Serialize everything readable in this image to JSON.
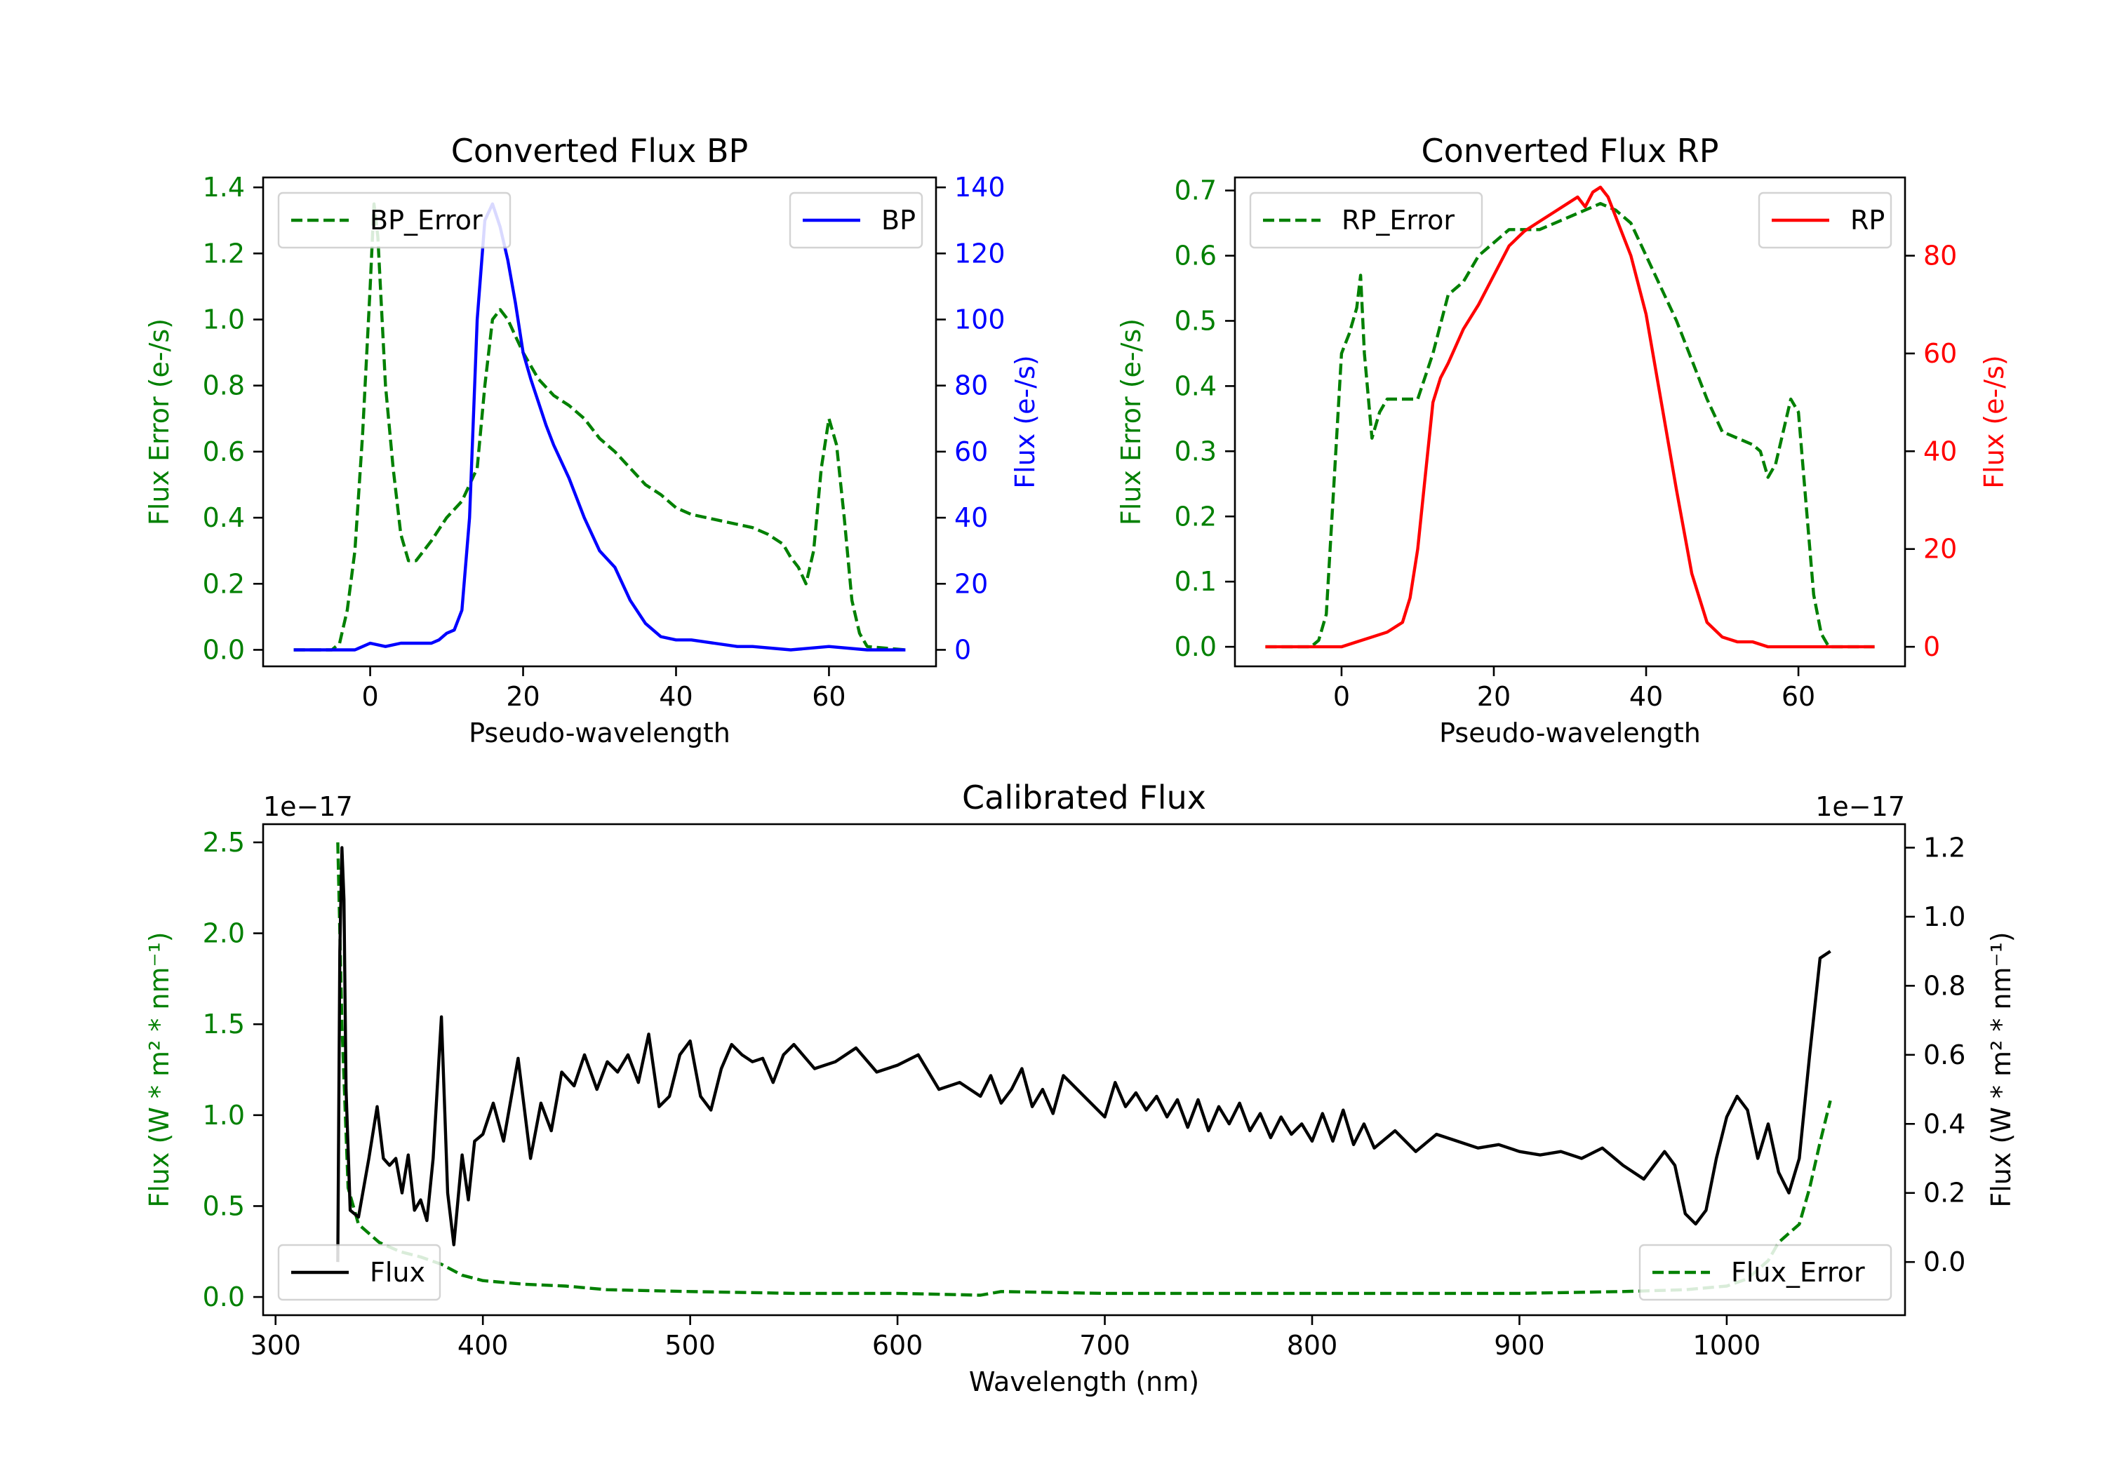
{
  "colors": {
    "green": "#008000",
    "blue": "#0000ff",
    "red": "#ff0000",
    "black": "#000000"
  },
  "chart_data": [
    {
      "id": "bp",
      "type": "line",
      "title": "Converted Flux BP",
      "xlabel": "Pseudo-wavelength",
      "ylabel_left": "Flux Error (e-/s)",
      "ylabel_right": "Flux (e-/s)",
      "xlim": [
        -14,
        74
      ],
      "ylim_left": [
        -0.05,
        1.43
      ],
      "ylim_right": [
        -5,
        143
      ],
      "xticks": [
        0,
        20,
        40,
        60
      ],
      "xtick_labels": [
        "0",
        "20",
        "40",
        "60"
      ],
      "yticks_left": [
        0.0,
        0.2,
        0.4,
        0.6,
        0.8,
        1.0,
        1.2,
        1.4
      ],
      "ytick_labels_left": [
        "0.0",
        "0.2",
        "0.4",
        "0.6",
        "0.8",
        "1.0",
        "1.2",
        "1.4"
      ],
      "yticks_right": [
        0,
        20,
        40,
        60,
        80,
        100,
        120,
        140
      ],
      "ytick_labels_right": [
        "0",
        "20",
        "40",
        "60",
        "80",
        "100",
        "120",
        "140"
      ],
      "right_axis_color": "#0000ff",
      "legend_left": {
        "label": "BP_Error",
        "position": "upper left"
      },
      "legend_right": {
        "label": "BP",
        "position": "upper right"
      },
      "series": [
        {
          "name": "BP_Error",
          "axis": "left",
          "color": "#008000",
          "style": "dashed",
          "x": [
            -10,
            -5,
            -4,
            -3,
            -2,
            -1,
            0,
            0.5,
            1,
            2,
            3,
            4,
            5,
            6,
            7,
            8,
            10,
            12,
            14,
            15,
            16,
            17,
            18,
            19,
            20,
            22,
            24,
            26,
            28,
            30,
            32,
            34,
            36,
            38,
            40,
            42,
            44,
            46,
            48,
            50,
            52,
            54,
            55,
            56,
            57,
            58,
            59,
            60,
            61,
            62,
            63,
            64,
            65,
            70
          ],
          "y": [
            0.0,
            0.0,
            0.02,
            0.12,
            0.3,
            0.65,
            1.1,
            1.35,
            1.25,
            0.8,
            0.55,
            0.35,
            0.27,
            0.27,
            0.3,
            0.33,
            0.4,
            0.45,
            0.55,
            0.8,
            1.0,
            1.03,
            1.0,
            0.95,
            0.9,
            0.82,
            0.77,
            0.74,
            0.7,
            0.64,
            0.6,
            0.55,
            0.5,
            0.47,
            0.43,
            0.41,
            0.4,
            0.39,
            0.38,
            0.37,
            0.35,
            0.32,
            0.28,
            0.25,
            0.2,
            0.3,
            0.55,
            0.7,
            0.62,
            0.4,
            0.15,
            0.05,
            0.01,
            0.0
          ]
        },
        {
          "name": "BP",
          "axis": "right",
          "color": "#0000ff",
          "style": "solid",
          "x": [
            -10,
            -2,
            0,
            2,
            4,
            6,
            8,
            9,
            10,
            11,
            12,
            13,
            14,
            15,
            16,
            17,
            18,
            19,
            20,
            21,
            22,
            23,
            24,
            26,
            28,
            30,
            32,
            33,
            34,
            36,
            38,
            40,
            42,
            45,
            48,
            50,
            55,
            60,
            65,
            70
          ],
          "y": [
            0,
            0,
            2,
            1,
            2,
            2,
            2,
            3,
            5,
            6,
            12,
            40,
            100,
            130,
            135,
            128,
            118,
            105,
            90,
            82,
            75,
            68,
            62,
            52,
            40,
            30,
            25,
            20,
            15,
            8,
            4,
            3,
            3,
            2,
            1,
            1,
            0,
            1,
            0,
            0
          ]
        }
      ]
    },
    {
      "id": "rp",
      "type": "line",
      "title": "Converted Flux RP",
      "xlabel": "Pseudo-wavelength",
      "ylabel_left": "Flux Error (e-/s)",
      "ylabel_right": "Flux (e-/s)",
      "xlim": [
        -14,
        74
      ],
      "ylim_left": [
        -0.03,
        0.72
      ],
      "ylim_right": [
        -4,
        96
      ],
      "xticks": [
        0,
        20,
        40,
        60
      ],
      "xtick_labels": [
        "0",
        "20",
        "40",
        "60"
      ],
      "yticks_left": [
        0.0,
        0.1,
        0.2,
        0.3,
        0.4,
        0.5,
        0.6,
        0.7
      ],
      "ytick_labels_left": [
        "0.0",
        "0.1",
        "0.2",
        "0.3",
        "0.4",
        "0.5",
        "0.6",
        "0.7"
      ],
      "yticks_right": [
        0,
        20,
        40,
        60,
        80
      ],
      "ytick_labels_right": [
        "0",
        "20",
        "40",
        "60",
        "80"
      ],
      "right_axis_color": "#ff0000",
      "legend_left": {
        "label": "RP_Error",
        "position": "upper left"
      },
      "legend_right": {
        "label": "RP",
        "position": "upper right"
      },
      "series": [
        {
          "name": "RP_Error",
          "axis": "left",
          "color": "#008000",
          "style": "dashed",
          "x": [
            -10,
            -4,
            -3,
            -2,
            -1,
            0,
            1,
            2,
            2.5,
            3,
            4,
            5,
            6,
            8,
            10,
            12,
            14,
            16,
            18,
            20,
            22,
            24,
            26,
            28,
            30,
            32,
            34,
            36,
            38,
            40,
            42,
            44,
            46,
            48,
            50,
            52,
            54,
            55,
            56,
            57,
            58,
            59,
            60,
            61,
            62,
            63,
            64,
            65,
            70
          ],
          "y": [
            0.0,
            0.0,
            0.01,
            0.05,
            0.25,
            0.45,
            0.48,
            0.52,
            0.57,
            0.45,
            0.32,
            0.36,
            0.38,
            0.38,
            0.38,
            0.45,
            0.54,
            0.56,
            0.6,
            0.62,
            0.64,
            0.64,
            0.64,
            0.65,
            0.66,
            0.67,
            0.68,
            0.67,
            0.65,
            0.6,
            0.55,
            0.5,
            0.44,
            0.38,
            0.33,
            0.32,
            0.31,
            0.3,
            0.26,
            0.28,
            0.33,
            0.38,
            0.36,
            0.22,
            0.08,
            0.02,
            0.0,
            0.0,
            0.0
          ]
        },
        {
          "name": "RP",
          "axis": "right",
          "color": "#ff0000",
          "style": "solid",
          "x": [
            -10,
            -2,
            0,
            2,
            4,
            6,
            8,
            9,
            10,
            11,
            12,
            13,
            14,
            16,
            18,
            20,
            22,
            24,
            26,
            28,
            30,
            31,
            32,
            33,
            34,
            35,
            36,
            38,
            40,
            42,
            44,
            46,
            48,
            50,
            52,
            54,
            56,
            58,
            60,
            65,
            70
          ],
          "y": [
            0,
            0,
            0,
            1,
            2,
            3,
            5,
            10,
            20,
            35,
            50,
            55,
            58,
            65,
            70,
            76,
            82,
            85,
            87,
            89,
            91,
            92,
            90,
            93,
            94,
            92,
            88,
            80,
            68,
            50,
            32,
            15,
            5,
            2,
            1,
            1,
            0,
            0,
            0,
            0,
            0
          ]
        }
      ]
    },
    {
      "id": "calibrated",
      "type": "line",
      "title": "Calibrated Flux",
      "xlabel": "Wavelength (nm)",
      "ylabel_left": "Flux (W * m² * nm⁻¹)",
      "ylabel_right": "Flux (W * m² * nm⁻¹)",
      "offset_left": "1e−17",
      "offset_right": "1e−17",
      "xlim": [
        294,
        1086
      ],
      "ylim_left": [
        -0.1,
        2.6
      ],
      "ylim_right": [
        -0.154,
        1.268
      ],
      "xticks": [
        300,
        400,
        500,
        600,
        700,
        800,
        900,
        1000
      ],
      "xtick_labels": [
        "300",
        "400",
        "500",
        "600",
        "700",
        "800",
        "900",
        "1000"
      ],
      "yticks_left": [
        0.0,
        0.5,
        1.0,
        1.5,
        2.0,
        2.5
      ],
      "ytick_labels_left": [
        "0.0",
        "0.5",
        "1.0",
        "1.5",
        "2.0",
        "2.5"
      ],
      "yticks_right": [
        0.0,
        0.2,
        0.4,
        0.6,
        0.8,
        1.0,
        1.2
      ],
      "ytick_labels_right": [
        "0.0",
        "0.2",
        "0.4",
        "0.6",
        "0.8",
        "1.0",
        "1.2"
      ],
      "right_axis_color": "#000000",
      "legend_left": {
        "label": "Flux",
        "position": "lower left"
      },
      "legend_right": {
        "label": "Flux_Error",
        "position": "lower right"
      },
      "series": [
        {
          "name": "Flux_Error",
          "axis": "left",
          "color": "#008000",
          "style": "dashed",
          "x": [
            330,
            332,
            335,
            340,
            350,
            360,
            370,
            380,
            390,
            400,
            420,
            440,
            460,
            500,
            550,
            600,
            640,
            650,
            700,
            750,
            800,
            850,
            900,
            950,
            980,
            1000,
            1010,
            1020,
            1025,
            1030,
            1035,
            1040,
            1045,
            1050
          ],
          "y": [
            2.5,
            1.5,
            0.6,
            0.4,
            0.3,
            0.25,
            0.22,
            0.18,
            0.12,
            0.09,
            0.07,
            0.06,
            0.04,
            0.03,
            0.02,
            0.02,
            0.01,
            0.03,
            0.02,
            0.02,
            0.02,
            0.02,
            0.02,
            0.03,
            0.04,
            0.06,
            0.1,
            0.2,
            0.3,
            0.35,
            0.4,
            0.6,
            0.85,
            1.08
          ]
        },
        {
          "name": "Flux",
          "axis": "right",
          "color": "#000000",
          "style": "solid",
          "x": [
            330,
            331,
            332,
            333,
            334,
            336,
            340,
            345,
            349,
            352,
            355,
            358,
            361,
            364,
            367,
            370,
            373,
            376,
            380,
            383,
            386,
            390,
            393,
            396,
            400,
            405,
            410,
            417,
            423,
            428,
            433,
            438,
            444,
            449,
            455,
            460,
            465,
            470,
            475,
            480,
            485,
            490,
            495,
            500,
            505,
            510,
            515,
            520,
            525,
            530,
            535,
            540,
            545,
            550,
            560,
            570,
            580,
            590,
            600,
            610,
            620,
            630,
            640,
            645,
            650,
            655,
            660,
            665,
            670,
            675,
            680,
            690,
            700,
            705,
            710,
            715,
            720,
            725,
            730,
            735,
            740,
            745,
            750,
            755,
            760,
            765,
            770,
            775,
            780,
            785,
            790,
            795,
            800,
            805,
            810,
            815,
            820,
            825,
            830,
            840,
            850,
            860,
            870,
            880,
            890,
            900,
            910,
            920,
            930,
            940,
            950,
            960,
            970,
            975,
            980,
            985,
            990,
            995,
            1000,
            1005,
            1010,
            1015,
            1020,
            1025,
            1030,
            1035,
            1040,
            1045,
            1050
          ],
          "y": [
            0.0,
            0.9,
            1.2,
            1.05,
            0.5,
            0.15,
            0.13,
            0.3,
            0.45,
            0.3,
            0.28,
            0.3,
            0.2,
            0.31,
            0.15,
            0.18,
            0.12,
            0.3,
            0.71,
            0.2,
            0.05,
            0.31,
            0.18,
            0.35,
            0.37,
            0.46,
            0.35,
            0.59,
            0.3,
            0.46,
            0.38,
            0.55,
            0.51,
            0.6,
            0.5,
            0.58,
            0.55,
            0.6,
            0.52,
            0.66,
            0.45,
            0.48,
            0.6,
            0.64,
            0.48,
            0.44,
            0.56,
            0.63,
            0.6,
            0.58,
            0.59,
            0.52,
            0.6,
            0.63,
            0.56,
            0.58,
            0.62,
            0.55,
            0.57,
            0.6,
            0.5,
            0.52,
            0.48,
            0.54,
            0.46,
            0.5,
            0.56,
            0.45,
            0.5,
            0.43,
            0.54,
            0.48,
            0.42,
            0.52,
            0.45,
            0.49,
            0.44,
            0.48,
            0.42,
            0.47,
            0.39,
            0.47,
            0.38,
            0.45,
            0.4,
            0.46,
            0.38,
            0.43,
            0.36,
            0.42,
            0.37,
            0.4,
            0.35,
            0.43,
            0.35,
            0.44,
            0.34,
            0.4,
            0.33,
            0.38,
            0.32,
            0.37,
            0.35,
            0.33,
            0.34,
            0.32,
            0.31,
            0.32,
            0.3,
            0.33,
            0.28,
            0.24,
            0.32,
            0.28,
            0.14,
            0.11,
            0.15,
            0.3,
            0.42,
            0.48,
            0.44,
            0.3,
            0.4,
            0.26,
            0.2,
            0.3,
            0.6,
            0.88,
            0.9
          ]
        }
      ]
    }
  ]
}
